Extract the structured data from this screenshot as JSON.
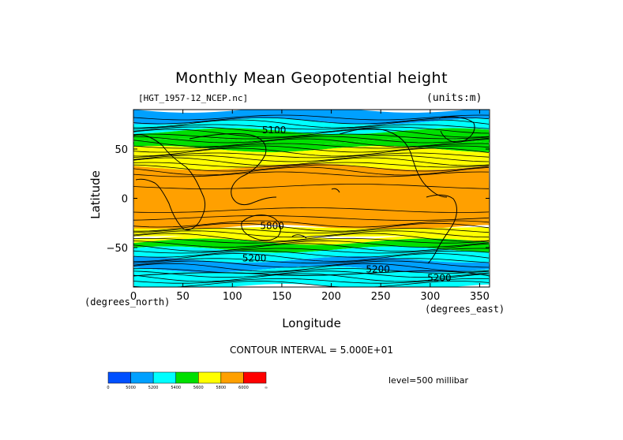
{
  "chart_data": {
    "type": "heatmap",
    "title": "Monthly Mean Geopotential height",
    "file_label": "[HGT_1957-12_NCEP.nc]",
    "units_label": "(units:m)",
    "xlabel": "Longitude",
    "ylabel": "Latitude",
    "x_unit_note": "(degrees_east)",
    "y_unit_note": "(degrees_north)",
    "xlim": [
      0,
      360
    ],
    "ylim": [
      -90,
      90
    ],
    "x_ticks": [
      "0",
      "50",
      "100",
      "150",
      "200",
      "250",
      "300",
      "350"
    ],
    "x_tick_values": [
      0,
      50,
      100,
      150,
      200,
      250,
      300,
      350
    ],
    "y_ticks": [
      "50",
      "0",
      "−50"
    ],
    "y_tick_values": [
      50,
      0,
      -50
    ],
    "contour_interval_text": "CONTOUR INTERVAL = 5.000E+01",
    "level_text": "level=500 millibar",
    "contour_labels": [
      {
        "text": "5100",
        "x": 130,
        "y": 66
      },
      {
        "text": "5200",
        "x": 110,
        "y": -64
      },
      {
        "text": "5200",
        "x": 235,
        "y": -75
      },
      {
        "text": "5200",
        "x": 297,
        "y": -84
      },
      {
        "text": "5800",
        "x": 128,
        "y": -31
      }
    ],
    "bands": [
      {
        "lat": [
          90,
          78
        ],
        "value": 5100
      },
      {
        "lat": [
          78,
          68
        ],
        "value": 5300
      },
      {
        "lat": [
          68,
          58
        ],
        "value": 5400
      },
      {
        "lat": [
          58,
          50
        ],
        "value": 5500
      },
      {
        "lat": [
          50,
          42
        ],
        "value": 5600
      },
      {
        "lat": [
          42,
          32
        ],
        "value": 5700
      },
      {
        "lat": [
          32,
          -30
        ],
        "value": 5850
      },
      {
        "lat": [
          -30,
          -38
        ],
        "value": 5700
      },
      {
        "lat": [
          -38,
          -44
        ],
        "value": 5600
      },
      {
        "lat": [
          -44,
          -52
        ],
        "value": 5400
      },
      {
        "lat": [
          -52,
          -62
        ],
        "value": 5300
      },
      {
        "lat": [
          -62,
          -72
        ],
        "value": 5150
      },
      {
        "lat": [
          -72,
          -90
        ],
        "value": 5250
      }
    ],
    "colorbar": {
      "labels": [
        "0",
        "5000",
        "5200",
        "5400",
        "5600",
        "5800",
        "6000",
        "∞"
      ],
      "colors": [
        "#0050ff",
        "#00a0ff",
        "#00ffff",
        "#00e000",
        "#ffff00",
        "#ffa000",
        "#ff0000"
      ]
    }
  }
}
